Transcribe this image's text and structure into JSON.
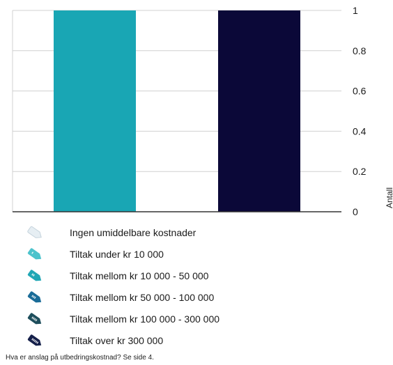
{
  "chart_data": {
    "type": "bar",
    "categories": [
      "",
      ""
    ],
    "series": [
      {
        "values": [
          1,
          1
        ]
      }
    ],
    "bar_colors": [
      "#19a6b4",
      "#0b0838"
    ],
    "title": "",
    "xlabel": "",
    "ylabel": "Antall",
    "ylim": [
      0,
      1
    ],
    "yticks": [
      "0",
      "0.2",
      "0.4",
      "0.6",
      "0.8",
      "1"
    ],
    "grid": true,
    "y_axis_side": "right"
  },
  "legend": {
    "items": [
      {
        "label": "Ingen umiddelbare kostnader",
        "color": "#e6eef3",
        "icon": "tag-empty-icon",
        "marks": 0
      },
      {
        "label": "Tiltak under kr 10 000",
        "color": "#4cc3cc",
        "icon": "tag-1-icon",
        "marks": 1
      },
      {
        "label": "Tiltak mellom kr 10 000 - 50 000",
        "color": "#21a7b5",
        "icon": "tag-2-icon",
        "marks": 2
      },
      {
        "label": "Tiltak mellom kr 50 000 - 100 000",
        "color": "#1a6c98",
        "icon": "tag-3-icon",
        "marks": 3
      },
      {
        "label": "Tiltak mellom kr 100 000 - 300 000",
        "color": "#1e4e5c",
        "icon": "tag-4-icon",
        "marks": 4
      },
      {
        "label": "Tiltak over kr  300 000",
        "color": "#15204a",
        "icon": "tag-5-icon",
        "marks": 5
      }
    ]
  },
  "footnote": "Hva er anslag på utbedringskostnad? Se side 4."
}
